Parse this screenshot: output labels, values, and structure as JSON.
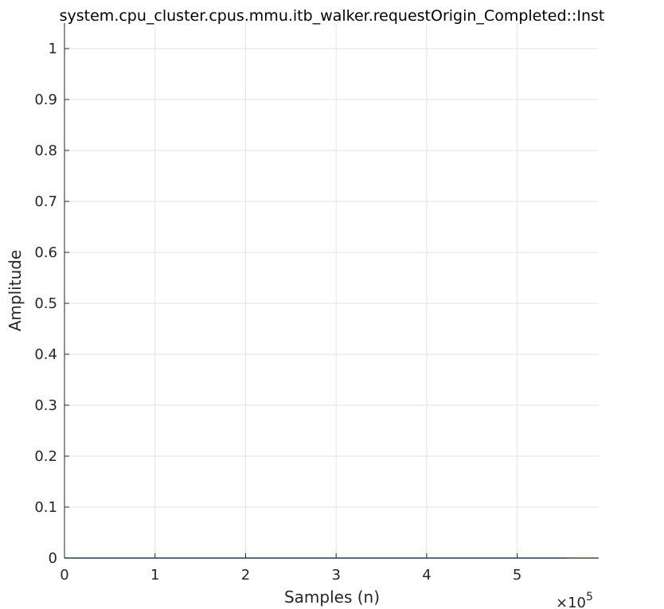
{
  "chart_data": {
    "type": "line",
    "title": "system.cpu_cluster.cpus.mmu.itb_walker.requestOrigin_Completed::Inst",
    "xlabel": "Samples (n)",
    "ylabel": "Amplitude",
    "x_exponent_label": "×10",
    "x_exponent": "5",
    "xlim": [
      0,
      590000
    ],
    "ylim": [
      0,
      1.05
    ],
    "x_ticks": [
      0,
      1,
      2,
      3,
      4,
      5
    ],
    "x_tick_labels": [
      "0",
      "1",
      "2",
      "3",
      "4",
      "5"
    ],
    "y_ticks": [
      0,
      0.1,
      0.2,
      0.3,
      0.4,
      0.5,
      0.6,
      0.7,
      0.8,
      0.9,
      1
    ],
    "y_tick_labels": [
      "0",
      "0.1",
      "0.2",
      "0.3",
      "0.4",
      "0.5",
      "0.6",
      "0.7",
      "0.8",
      "0.9",
      "1"
    ],
    "grid": true,
    "series": [
      {
        "color": "#0072bd",
        "x": [
          0,
          555000
        ],
        "y": [
          0,
          0
        ]
      },
      {
        "color": "#77ac30",
        "x": [
          555000,
          590000
        ],
        "y": [
          0,
          0
        ]
      }
    ]
  }
}
